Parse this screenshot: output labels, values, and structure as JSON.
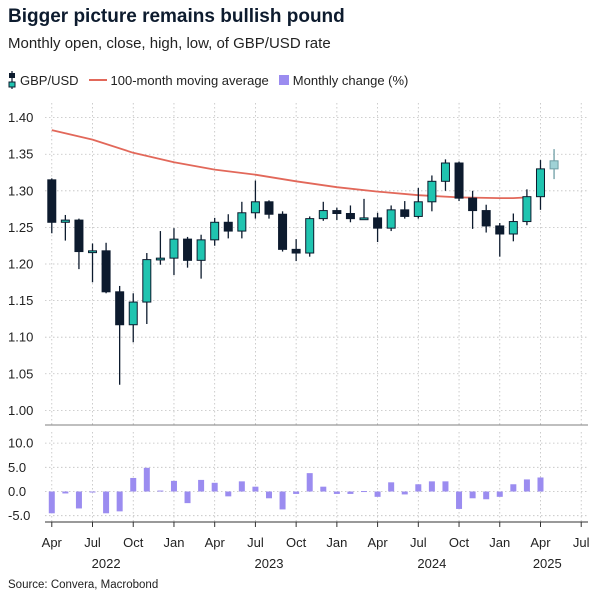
{
  "header": {
    "title": "Bigger picture remains bullish pound",
    "subtitle": "Monthly open, close, high, low, of GBP/USD rate"
  },
  "legend": {
    "candles": "GBP/USD",
    "ma": "100-month moving average",
    "change": "Monthly change (%)"
  },
  "colors": {
    "up": "#20c4b0",
    "down": "#0d1b2e",
    "ma": "#e2685a",
    "bars": "#9b8cf0",
    "last": "#9fd2d6",
    "grid": "#bfbfbf"
  },
  "source": "Source: Convera, Macrobond",
  "chart_data": {
    "type": "candlestick",
    "title": "Bigger picture remains bullish pound",
    "subtitle": "Monthly open, close, high, low, of GBP/USD rate",
    "x_ticks": [
      {
        "i": 0,
        "label": "Apr"
      },
      {
        "i": 3,
        "label": "Jul"
      },
      {
        "i": 6,
        "label": "Oct"
      },
      {
        "i": 9,
        "label": "Jan"
      },
      {
        "i": 12,
        "label": "Apr"
      },
      {
        "i": 15,
        "label": "Jul"
      },
      {
        "i": 18,
        "label": "Oct"
      },
      {
        "i": 21,
        "label": "Jan"
      },
      {
        "i": 24,
        "label": "Apr"
      },
      {
        "i": 27,
        "label": "Jul"
      },
      {
        "i": 30,
        "label": "Oct"
      },
      {
        "i": 33,
        "label": "Jan"
      },
      {
        "i": 36,
        "label": "Apr"
      },
      {
        "i": 39,
        "label": "Jul"
      }
    ],
    "year_labels": [
      {
        "i": 4,
        "label": "2022"
      },
      {
        "i": 16,
        "label": "2023"
      },
      {
        "i": 28,
        "label": "2024"
      },
      {
        "i": 36.5,
        "label": "2025"
      }
    ],
    "x_range": [
      -0.5,
      39.5
    ],
    "price_axis": {
      "ylim": [
        0.98,
        1.42
      ],
      "ticks": [
        1.0,
        1.05,
        1.1,
        1.15,
        1.2,
        1.25,
        1.3,
        1.35,
        1.4
      ]
    },
    "change_axis": {
      "ylim": [
        -6.3,
        12.3
      ],
      "ticks": [
        -5.0,
        0.0,
        5.0,
        10.0
      ]
    },
    "candles": [
      {
        "month": "Apr 2022",
        "open": 1.315,
        "high": 1.317,
        "low": 1.242,
        "close": 1.257
      },
      {
        "month": "May 2022",
        "open": 1.257,
        "high": 1.267,
        "low": 1.232,
        "close": 1.26
      },
      {
        "month": "Jun 2022",
        "open": 1.26,
        "high": 1.262,
        "low": 1.193,
        "close": 1.217
      },
      {
        "month": "Jul 2022",
        "open": 1.217,
        "high": 1.228,
        "low": 1.175,
        "close": 1.218
      },
      {
        "month": "Aug 2022",
        "open": 1.218,
        "high": 1.229,
        "low": 1.16,
        "close": 1.162
      },
      {
        "month": "Sep 2022",
        "open": 1.162,
        "high": 1.17,
        "low": 1.035,
        "close": 1.117
      },
      {
        "month": "Oct 2022",
        "open": 1.117,
        "high": 1.16,
        "low": 1.093,
        "close": 1.148
      },
      {
        "month": "Nov 2022",
        "open": 1.148,
        "high": 1.215,
        "low": 1.118,
        "close": 1.206
      },
      {
        "month": "Dec 2022",
        "open": 1.206,
        "high": 1.245,
        "low": 1.199,
        "close": 1.208
      },
      {
        "month": "Jan 2023",
        "open": 1.208,
        "high": 1.249,
        "low": 1.185,
        "close": 1.234
      },
      {
        "month": "Feb 2023",
        "open": 1.234,
        "high": 1.237,
        "low": 1.195,
        "close": 1.205
      },
      {
        "month": "Mar 2023",
        "open": 1.205,
        "high": 1.24,
        "low": 1.18,
        "close": 1.233
      },
      {
        "month": "Apr 2023",
        "open": 1.233,
        "high": 1.263,
        "low": 1.225,
        "close": 1.257
      },
      {
        "month": "May 2023",
        "open": 1.257,
        "high": 1.268,
        "low": 1.235,
        "close": 1.245
      },
      {
        "month": "Jun 2023",
        "open": 1.245,
        "high": 1.285,
        "low": 1.235,
        "close": 1.27
      },
      {
        "month": "Jul 2023",
        "open": 1.27,
        "high": 1.314,
        "low": 1.262,
        "close": 1.285
      },
      {
        "month": "Aug 2023",
        "open": 1.285,
        "high": 1.287,
        "low": 1.262,
        "close": 1.268
      },
      {
        "month": "Sep 2023",
        "open": 1.268,
        "high": 1.272,
        "low": 1.217,
        "close": 1.22
      },
      {
        "month": "Oct 2023",
        "open": 1.22,
        "high": 1.234,
        "low": 1.204,
        "close": 1.215
      },
      {
        "month": "Nov 2023",
        "open": 1.215,
        "high": 1.265,
        "low": 1.21,
        "close": 1.262
      },
      {
        "month": "Dec 2023",
        "open": 1.262,
        "high": 1.285,
        "low": 1.259,
        "close": 1.273
      },
      {
        "month": "Jan 2024",
        "open": 1.273,
        "high": 1.277,
        "low": 1.26,
        "close": 1.269
      },
      {
        "month": "Feb 2024",
        "open": 1.269,
        "high": 1.28,
        "low": 1.257,
        "close": 1.262
      },
      {
        "month": "Mar 2024",
        "open": 1.262,
        "high": 1.289,
        "low": 1.261,
        "close": 1.263
      },
      {
        "month": "Apr 2024",
        "open": 1.263,
        "high": 1.27,
        "low": 1.23,
        "close": 1.249
      },
      {
        "month": "May 2024",
        "open": 1.249,
        "high": 1.28,
        "low": 1.245,
        "close": 1.274
      },
      {
        "month": "Jun 2024",
        "open": 1.274,
        "high": 1.286,
        "low": 1.262,
        "close": 1.265
      },
      {
        "month": "Jul 2024",
        "open": 1.265,
        "high": 1.304,
        "low": 1.262,
        "close": 1.285
      },
      {
        "month": "Aug 2024",
        "open": 1.285,
        "high": 1.321,
        "low": 1.272,
        "close": 1.313
      },
      {
        "month": "Sep 2024",
        "open": 1.313,
        "high": 1.343,
        "low": 1.3,
        "close": 1.338
      },
      {
        "month": "Oct 2024",
        "open": 1.338,
        "high": 1.34,
        "low": 1.286,
        "close": 1.29
      },
      {
        "month": "Nov 2024",
        "open": 1.29,
        "high": 1.3,
        "low": 1.248,
        "close": 1.273
      },
      {
        "month": "Dec 2024",
        "open": 1.273,
        "high": 1.281,
        "low": 1.243,
        "close": 1.252
      },
      {
        "month": "Jan 2025",
        "open": 1.252,
        "high": 1.256,
        "low": 1.21,
        "close": 1.241
      },
      {
        "month": "Feb 2025",
        "open": 1.241,
        "high": 1.269,
        "low": 1.231,
        "close": 1.258
      },
      {
        "month": "Mar 2025",
        "open": 1.258,
        "high": 1.302,
        "low": 1.253,
        "close": 1.292
      },
      {
        "month": "Apr 2025",
        "open": 1.292,
        "high": 1.342,
        "low": 1.274,
        "close": 1.33
      },
      {
        "month": "May 2025",
        "open": 1.33,
        "high": 1.357,
        "low": 1.316,
        "close": 1.341
      }
    ],
    "moving_average": {
      "name": "100-month moving average",
      "points": [
        {
          "i": 0,
          "value": 1.383
        },
        {
          "i": 3,
          "value": 1.37
        },
        {
          "i": 6,
          "value": 1.352
        },
        {
          "i": 9,
          "value": 1.339
        },
        {
          "i": 12,
          "value": 1.329
        },
        {
          "i": 15,
          "value": 1.322
        },
        {
          "i": 18,
          "value": 1.313
        },
        {
          "i": 21,
          "value": 1.305
        },
        {
          "i": 24,
          "value": 1.299
        },
        {
          "i": 27,
          "value": 1.294
        },
        {
          "i": 30,
          "value": 1.291
        },
        {
          "i": 33,
          "value": 1.29
        },
        {
          "i": 34,
          "value": 1.29
        },
        {
          "i": 35,
          "value": 1.291
        }
      ]
    },
    "monthly_change": {
      "name": "Monthly change (%)",
      "values": [
        -4.5,
        -0.4,
        -3.5,
        0.0,
        -4.5,
        -4.1,
        2.8,
        4.9,
        0.2,
        2.2,
        -2.4,
        2.4,
        1.8,
        -1.0,
        2.1,
        1.0,
        -1.4,
        -3.7,
        -0.5,
        3.8,
        1.0,
        -0.5,
        -0.5,
        0.1,
        -1.1,
        1.9,
        -0.6,
        1.5,
        2.1,
        2.1,
        -3.6,
        -1.4,
        -1.6,
        -1.1,
        1.5,
        2.5,
        2.9
      ]
    }
  }
}
